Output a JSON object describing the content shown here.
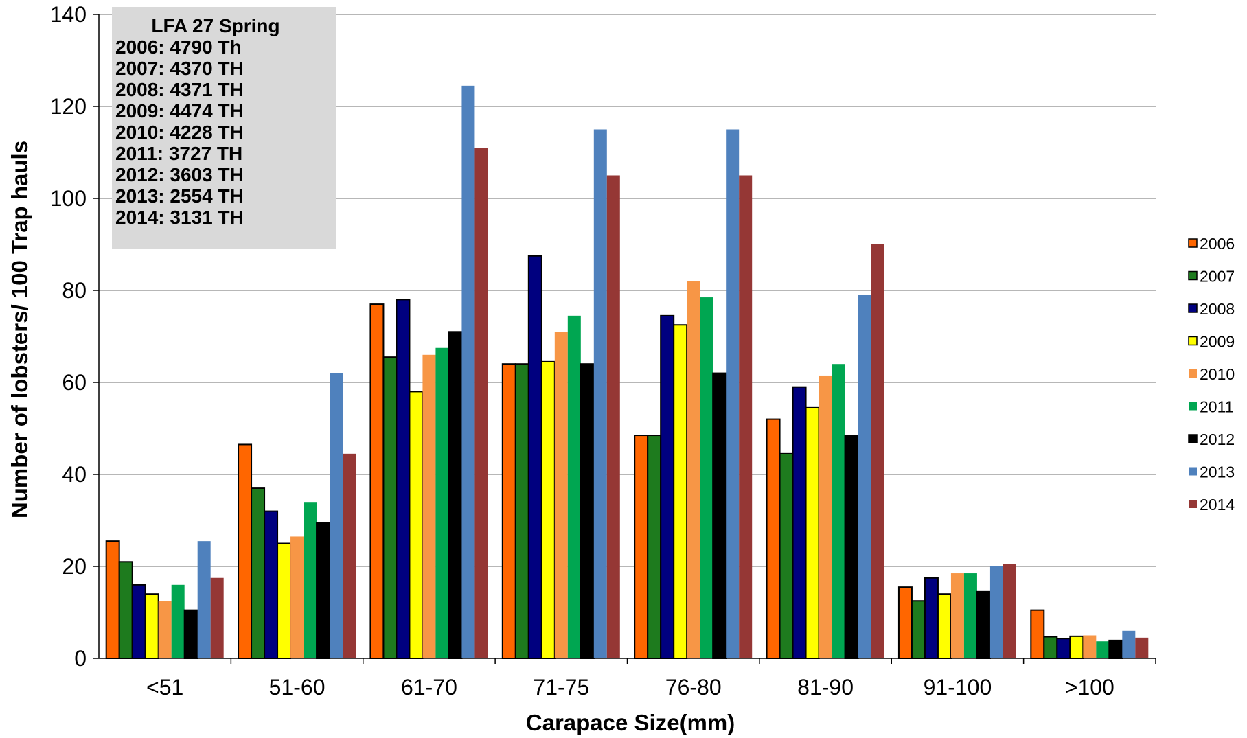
{
  "chart_data": {
    "type": "bar",
    "title": "",
    "xlabel": "Carapace Size(mm)",
    "ylabel": "Number of lobsters/ 100 Trap hauls",
    "ylim": [
      0,
      140
    ],
    "yticks": [
      0,
      20,
      40,
      60,
      80,
      100,
      120,
      140
    ],
    "grid": true,
    "legend_position": "right",
    "categories": [
      "<51",
      "51-60",
      "61-70",
      "71-75",
      "76-80",
      "81-90",
      "91-100",
      ">100"
    ],
    "series": [
      {
        "name": "2006",
        "color": "#FF6600",
        "values": [
          25.5,
          46.5,
          77,
          64,
          48.5,
          52,
          15.5,
          10.5
        ]
      },
      {
        "name": "2007",
        "color": "#1E7B1E",
        "values": [
          21,
          37,
          65.5,
          64,
          48.5,
          44.5,
          12.5,
          4.7
        ]
      },
      {
        "name": "2008",
        "color": "#00007F",
        "values": [
          16,
          32,
          78,
          87.5,
          74.5,
          59,
          17.5,
          4.3
        ]
      },
      {
        "name": "2009",
        "color": "#FFFF00",
        "values": [
          14,
          25,
          58,
          64.5,
          72.5,
          54.5,
          14,
          4.8
        ]
      },
      {
        "name": "2010",
        "color": "#F79646",
        "values": [
          12.5,
          26.5,
          66,
          71,
          82,
          61.5,
          18.5,
          5
        ]
      },
      {
        "name": "2011",
        "color": "#00A651",
        "values": [
          16,
          34,
          67.5,
          74.5,
          78.5,
          64,
          18.5,
          3.7
        ]
      },
      {
        "name": "2012",
        "color": "#000000",
        "values": [
          10.5,
          29.5,
          71,
          64,
          62,
          48.5,
          14.5,
          3.9
        ]
      },
      {
        "name": "2013",
        "color": "#4F81BD",
        "values": [
          25.5,
          62,
          124.5,
          115,
          115,
          79,
          20,
          6
        ]
      },
      {
        "name": "2014",
        "color": "#953735",
        "values": [
          17.5,
          44.5,
          111,
          105,
          105,
          90,
          20.5,
          4.5
        ]
      }
    ],
    "annotation": {
      "title": "LFA 27 Spring",
      "lines": [
        "2006: 4790 Th",
        "2007: 4370 TH",
        "2008: 4371 TH",
        "2009: 4474 TH",
        "2010: 4228 TH",
        "2011: 3727 TH",
        "2012: 3603 TH",
        "2013: 2554 TH",
        "2014: 3131 TH"
      ]
    }
  }
}
